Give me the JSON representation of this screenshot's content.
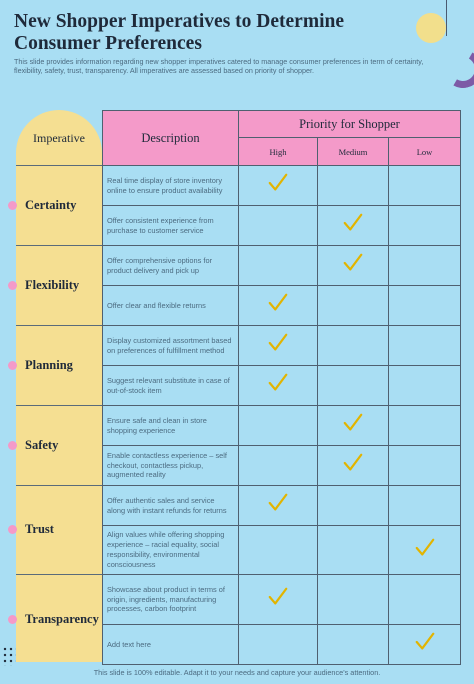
{
  "title": "New Shopper Imperatives to Determine Consumer Preferences",
  "subtitle": "This slide provides information regarding new shopper imperatives catered to manage consumer preferences in term of certainty, flexibility, safety, trust, transparency. All imperatives are assessed based on priority of shopper.",
  "table": {
    "imperative_header": "Imperative",
    "description_header": "Description",
    "priority_header": "Priority for Shopper",
    "levels": [
      "High",
      "Medium",
      "Low"
    ],
    "groups": [
      {
        "label": "Certainty",
        "rows": [
          {
            "description": "Real time display of store inventory online to ensure product availability",
            "priority": "High"
          },
          {
            "description": "Offer consistent experience from purchase to customer service",
            "priority": "Medium"
          }
        ]
      },
      {
        "label": "Flexibility",
        "rows": [
          {
            "description": "Offer comprehensive options for product delivery and pick up",
            "priority": "Medium"
          },
          {
            "description": "Offer clear and flexible returns",
            "priority": "High"
          }
        ]
      },
      {
        "label": "Planning",
        "rows": [
          {
            "description": "Display customized assortment based on preferences of fulfillment method",
            "priority": "High"
          },
          {
            "description": "Suggest relevant substitute in case of out-of-stock item",
            "priority": "High"
          }
        ]
      },
      {
        "label": "Safety",
        "rows": [
          {
            "description": "Ensure safe and clean in store shopping experience",
            "priority": "Medium"
          },
          {
            "description": "Enable contactless experience – self checkout, contactless pickup, augmented reality",
            "priority": "Medium"
          }
        ]
      },
      {
        "label": "Trust",
        "rows": [
          {
            "description": "Offer authentic sales and service along with instant refunds for returns",
            "priority": "High"
          },
          {
            "description": "Align values while offering shopping experience – racial equality, social responsibility, environmental consciousness",
            "priority": "Low"
          }
        ]
      },
      {
        "label": "Transparency",
        "rows": [
          {
            "description": "Showcase about product in terms of origin, ingredients, manufacturing processes, carbon footprint",
            "priority": "High"
          },
          {
            "description": "Add text here",
            "priority": "Low"
          }
        ]
      }
    ]
  },
  "footer": "This slide is 100% editable. Adapt it to your needs and capture your audience's attention.",
  "colors": {
    "background": "#a9def3",
    "header_pink": "#f49ac9",
    "imperative_yellow": "#f5df92",
    "check_gold": "#e2b400",
    "accent_purple": "#7d5aa6"
  }
}
